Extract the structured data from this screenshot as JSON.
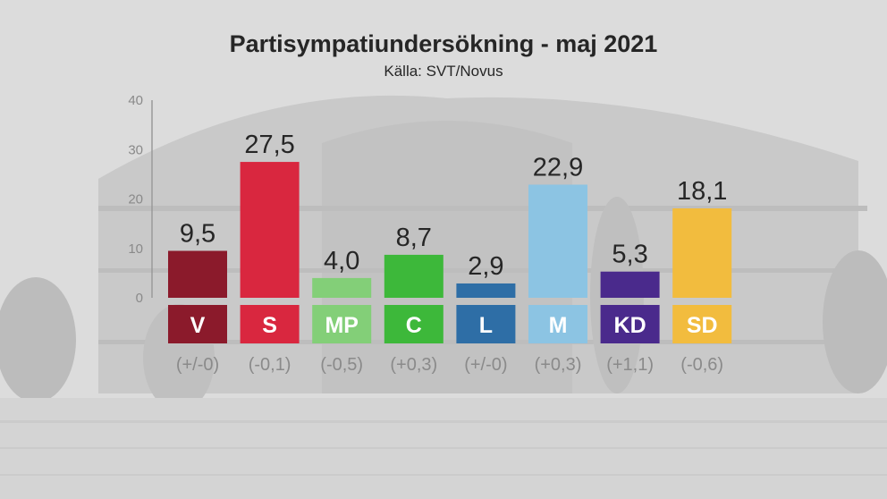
{
  "chart_data": {
    "type": "bar",
    "title": "Partisympatiundersökning - maj 2021",
    "subtitle": "Källa: SVT/Novus",
    "ylim": [
      0,
      40
    ],
    "yticks": [
      "0",
      "10",
      "20",
      "30",
      "40"
    ],
    "grid": false,
    "categories": [
      "V",
      "S",
      "MP",
      "C",
      "L",
      "M",
      "KD",
      "SD"
    ],
    "values": [
      9.5,
      27.5,
      4.0,
      8.7,
      2.9,
      22.9,
      5.3,
      18.1
    ],
    "value_labels": [
      "9,5",
      "27,5",
      "4,0",
      "8,7",
      "2,9",
      "22,9",
      "5,3",
      "18,1"
    ],
    "changes": [
      "(+/-0)",
      "(-0,1)",
      "(-0,5)",
      "(+0,3)",
      "(+/-0)",
      "(+0,3)",
      "(+1,1)",
      "(-0,6)"
    ],
    "colors": [
      "#8b1a2b",
      "#d9273f",
      "#83cf78",
      "#3db83a",
      "#2e6ea6",
      "#8cc4e3",
      "#4a2a8c",
      "#f2bc3e"
    ]
  }
}
